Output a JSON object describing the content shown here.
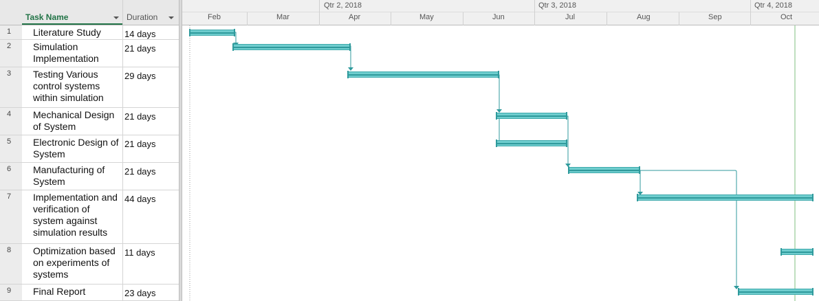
{
  "header": {
    "task_name_label": "Task Name",
    "duration_label": "Duration"
  },
  "timescale": {
    "quarters": [
      "Qtr 2, 2018",
      "Qtr 3, 2018",
      "Qtr 4, 2018"
    ],
    "months": [
      "Feb",
      "Mar",
      "Apr",
      "May",
      "Jun",
      "Jul",
      "Aug",
      "Sep",
      "Oct"
    ]
  },
  "tasks": [
    {
      "id": "1",
      "name": "Literature Study",
      "duration": "14 days"
    },
    {
      "id": "2",
      "name": "Simulation Implementation",
      "duration": "21 days"
    },
    {
      "id": "3",
      "name": "Testing Various control systems within simulation",
      "duration": "29 days"
    },
    {
      "id": "4",
      "name": "Mechanical Design of System",
      "duration": "21 days"
    },
    {
      "id": "5",
      "name": "Electronic Design of System",
      "duration": "21 days"
    },
    {
      "id": "6",
      "name": "Manufacturing of System",
      "duration": "21 days"
    },
    {
      "id": "7",
      "name": "Implementation and verification of system against simulation results",
      "duration": "44 days"
    },
    {
      "id": "8",
      "name": "Optimization based on experiments of systems",
      "duration": "11 days"
    },
    {
      "id": "9",
      "name": "Final Report",
      "duration": "23 days"
    }
  ],
  "colors": {
    "bar_fill": "#6fcdce",
    "bar_line": "#2f9a9c",
    "link": "#2f9a9c",
    "header_accent": "#217346",
    "today_line": "#7fbf7f"
  }
}
